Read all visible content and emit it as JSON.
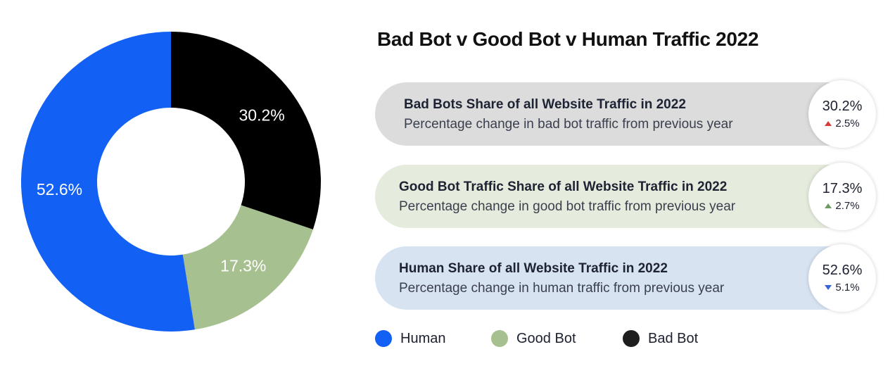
{
  "chart_data": {
    "type": "pie",
    "title": "Bad Bot v Good Bot v Human Traffic 2022",
    "series": [
      {
        "name": "Bad Bot",
        "value": 30.2,
        "label": "30.2%",
        "color": "#000000"
      },
      {
        "name": "Good Bot",
        "value": 17.3,
        "label": "17.3%",
        "color": "#a7c08f"
      },
      {
        "name": "Human",
        "value": 52.6,
        "label": "52.6%",
        "color": "#1360f5"
      }
    ],
    "legend": {
      "placement": "bottom",
      "items": [
        {
          "label": "Human",
          "color": "#1360f5"
        },
        {
          "label": "Good Bot",
          "color": "#a7c08f"
        },
        {
          "label": "Bad Bot",
          "color": "#1e1e1e"
        }
      ]
    }
  },
  "cards": [
    {
      "heading": "Bad Bots Share of all Website Traffic in 2022",
      "sub": "Percentage change in bad bot traffic from previous year",
      "value": "30.2%",
      "change": "2.5%",
      "direction": "up",
      "arrow_color": "#d83a3a",
      "bg": "#dcdcdc"
    },
    {
      "heading": "Good Bot Traffic Share of all Website Traffic in 2022",
      "sub": "Percentage change in good bot traffic from previous year",
      "value": "17.3%",
      "change": "2.7%",
      "direction": "up",
      "arrow_color": "#6e9a66",
      "bg": "#e5ecdd"
    },
    {
      "heading": "Human Share of all Website Traffic in 2022",
      "sub": "Percentage change in human traffic from previous year",
      "value": "52.6%",
      "change": "5.1%",
      "direction": "down",
      "arrow_color": "#3a63d6",
      "bg": "#d8e3f2"
    }
  ]
}
